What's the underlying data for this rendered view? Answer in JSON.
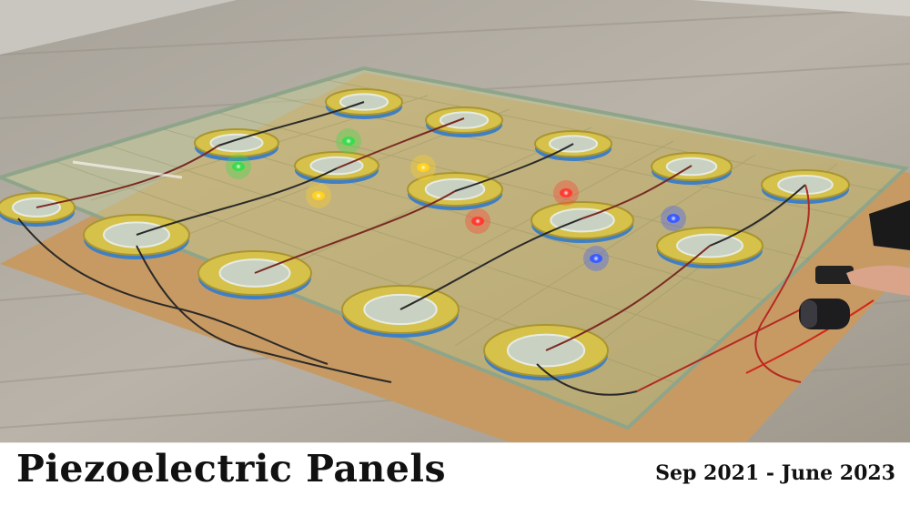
{
  "caption": {
    "title": "Piezoelectric Panels",
    "dates": "Sep 2021 - June 2023"
  },
  "photo": {
    "subject": "glass-panel-with-piezo-discs-and-leds",
    "led_colors": [
      "#ff3b30",
      "#3b5bff",
      "#3bdc4b",
      "#ffd21f"
    ]
  }
}
